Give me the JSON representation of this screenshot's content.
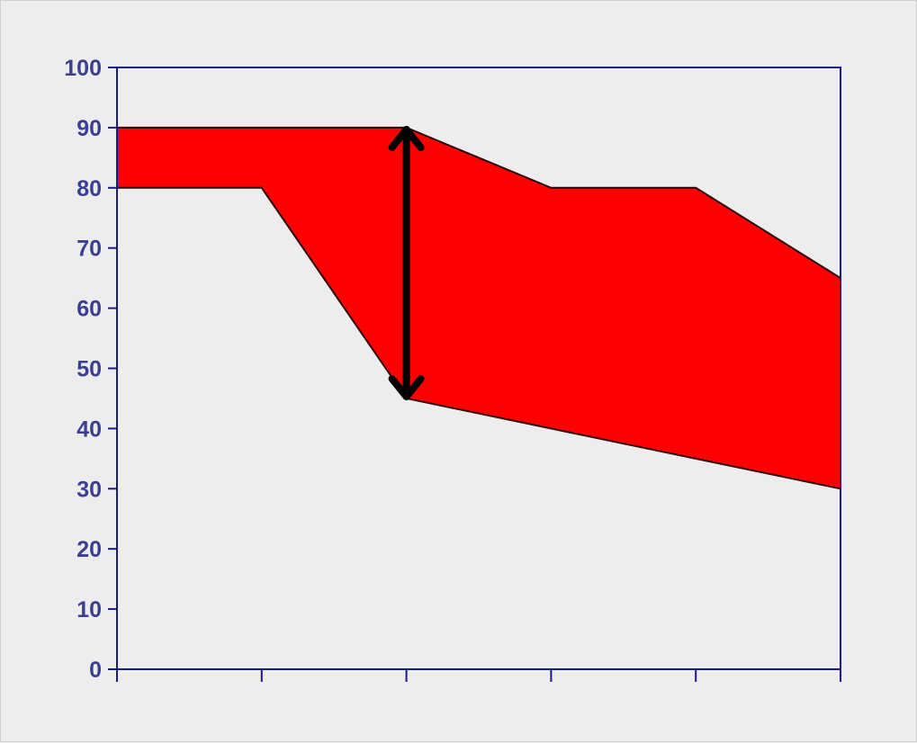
{
  "chart_data": {
    "type": "area",
    "title": "",
    "xlabel": "",
    "ylabel": "",
    "x": [
      0,
      1,
      2,
      3,
      4,
      5
    ],
    "x_tick_labels": [
      "",
      "",
      "",
      "",
      "",
      ""
    ],
    "ylim": [
      0,
      100
    ],
    "yticks": [
      "0",
      "10",
      "20",
      "30",
      "40",
      "50",
      "60",
      "70",
      "80",
      "90",
      "100"
    ],
    "series": [
      {
        "values": [
          90,
          90,
          90,
          80,
          80,
          65
        ]
      },
      {
        "values": [
          80,
          80,
          45,
          40,
          35,
          30
        ]
      }
    ],
    "fill_between_series": true,
    "annotation": {
      "type": "double-arrow",
      "x": 2,
      "y_from": 45,
      "y_to": 90
    },
    "grid": false,
    "legend": "none",
    "colors": {
      "band": "#ff0000",
      "axis": "#1a1a8c",
      "tick_text": "#3a3f8f",
      "arrow": "#000000"
    }
  }
}
